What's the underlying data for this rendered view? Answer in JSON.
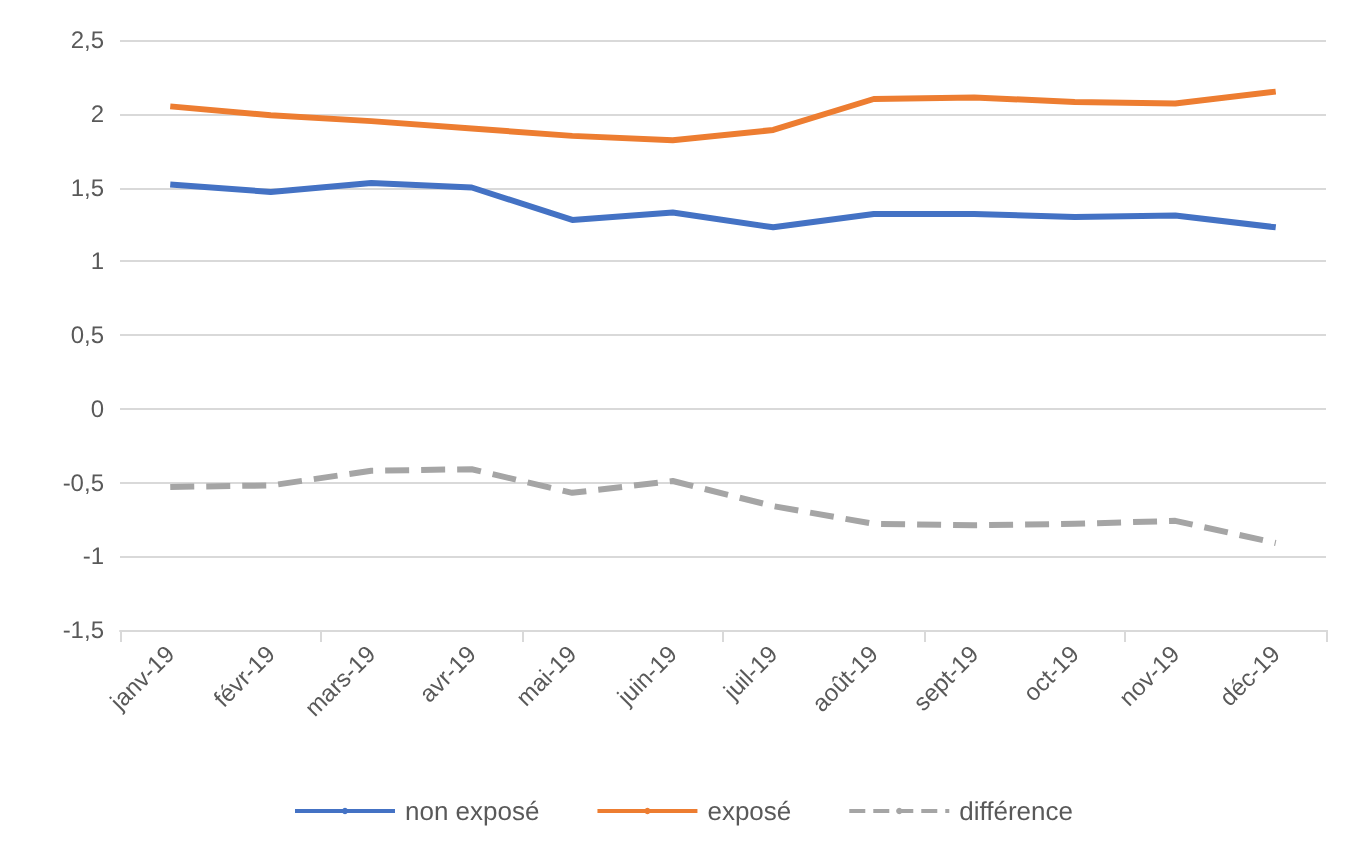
{
  "chart_data": {
    "type": "line",
    "categories": [
      "janv-19",
      "févr-19",
      "mars-19",
      "avr-19",
      "mai-19",
      "juin-19",
      "juil-19",
      "août-19",
      "sept-19",
      "oct-19",
      "nov-19",
      "déc-19"
    ],
    "series": [
      {
        "name": "non exposé",
        "color": "#4472c4",
        "values": [
          1.52,
          1.47,
          1.53,
          1.5,
          1.28,
          1.33,
          1.23,
          1.32,
          1.32,
          1.3,
          1.31,
          1.23
        ]
      },
      {
        "name": "exposé",
        "color": "#ed7d31",
        "values": [
          2.05,
          1.99,
          1.95,
          1.9,
          1.85,
          1.82,
          1.89,
          2.1,
          2.11,
          2.08,
          2.07,
          2.15
        ]
      },
      {
        "name": "différence",
        "color": "#a5a5a5",
        "line_style": "dashed",
        "values": [
          -0.53,
          -0.52,
          -0.42,
          -0.41,
          -0.57,
          -0.49,
          -0.66,
          -0.78,
          -0.79,
          -0.78,
          -0.76,
          -0.91
        ]
      }
    ],
    "ylim": [
      -1.5,
      2.5
    ],
    "yticks": [
      {
        "value": -1.5,
        "label": "-1,5"
      },
      {
        "value": -1,
        "label": "-1"
      },
      {
        "value": -0.5,
        "label": "-0,5"
      },
      {
        "value": 0,
        "label": "0"
      },
      {
        "value": 0.5,
        "label": "0,5"
      },
      {
        "value": 1,
        "label": "1"
      },
      {
        "value": 1.5,
        "label": "1,5"
      },
      {
        "value": 2,
        "label": "2"
      },
      {
        "value": 2.5,
        "label": "2,5"
      }
    ],
    "grid": "y",
    "legend": "bottom",
    "marker": "none",
    "line_style": "solid"
  }
}
